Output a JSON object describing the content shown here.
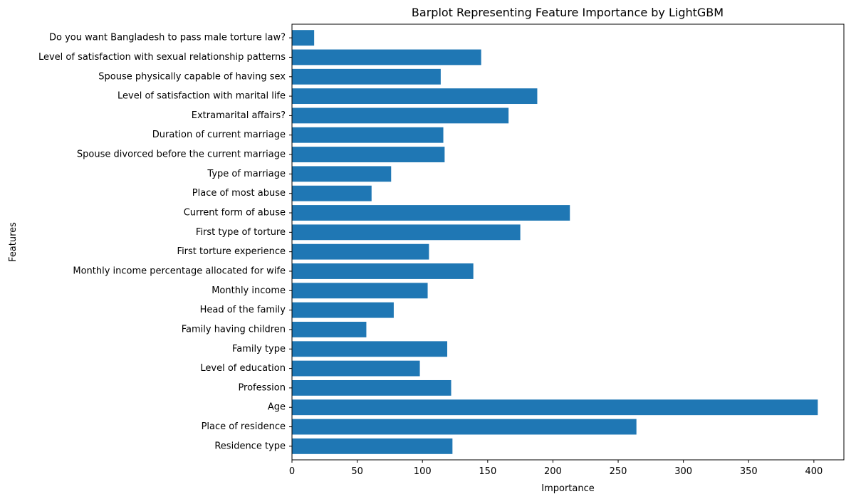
{
  "chart_data": {
    "type": "bar",
    "orientation": "horizontal",
    "title": "Barplot Representing Feature Importance by LightGBM",
    "xlabel": "Importance",
    "ylabel": "Features",
    "xlim": [
      0,
      423
    ],
    "xticks": [
      0,
      50,
      100,
      150,
      200,
      250,
      300,
      350,
      400
    ],
    "grid": false,
    "bar_color": "#1f77b4",
    "categories": [
      "Residence type",
      "Place of residence",
      "Age",
      "Profession",
      "Level of education",
      "Family type",
      "Family having children",
      "Head of the family",
      "Monthly income",
      "Monthly income percentage allocated for wife",
      "First torture experience",
      "First type of torture",
      "Current form of abuse",
      "Place of most abuse",
      "Type of marriage",
      "Spouse divorced before the current marriage",
      "Duration of current marriage",
      "Extramarital affairs?",
      "Level of satisfaction with marital life",
      "Spouse physically capable of having sex",
      "Level of satisfaction with sexual relationship patterns",
      "Do you want Bangladesh to pass male torture law?"
    ],
    "values": [
      123,
      264,
      403,
      122,
      98,
      119,
      57,
      78,
      104,
      139,
      105,
      175,
      213,
      61,
      76,
      117,
      116,
      166,
      188,
      114,
      145,
      17
    ]
  }
}
